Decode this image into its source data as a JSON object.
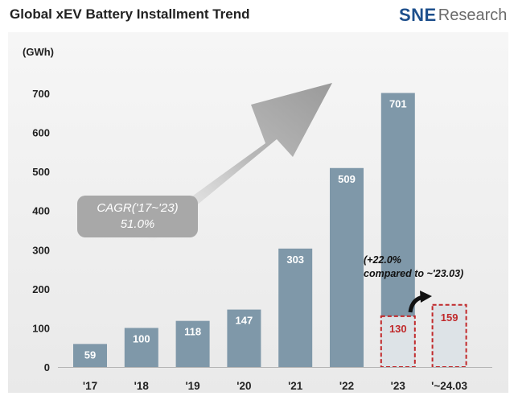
{
  "title": "Global xEV Battery Installment Trend",
  "logo": {
    "sne": "SNE",
    "research": "Research"
  },
  "annotation": {
    "cagr_line1": "CAGR('17~'23)",
    "cagr_line2": "51.0%",
    "growth_line1": "(+22.0%",
    "growth_line2": "compared to ~'23.03)"
  },
  "chart_data": {
    "type": "bar",
    "unit": "(GWh)",
    "categories": [
      "'17",
      "'18",
      "'19",
      "'20",
      "'21",
      "'22",
      "'23",
      "'~24.03"
    ],
    "series": [
      {
        "values": [
          59,
          100,
          118,
          147,
          303,
          509,
          701,
          null
        ]
      }
    ],
    "ytd": [
      {
        "category": "'23",
        "value": 130
      },
      {
        "category": "'~24.03",
        "value": 159
      }
    ],
    "ylim": [
      0,
      700
    ],
    "yticks": [
      0,
      100,
      200,
      300,
      400,
      500,
      600,
      700
    ],
    "grid": false,
    "colors": {
      "bar": "#7f98a9",
      "ytd_fill": "#dde3e7",
      "ytd_border": "#c0292b",
      "ytd_label": "#c0292b"
    }
  }
}
